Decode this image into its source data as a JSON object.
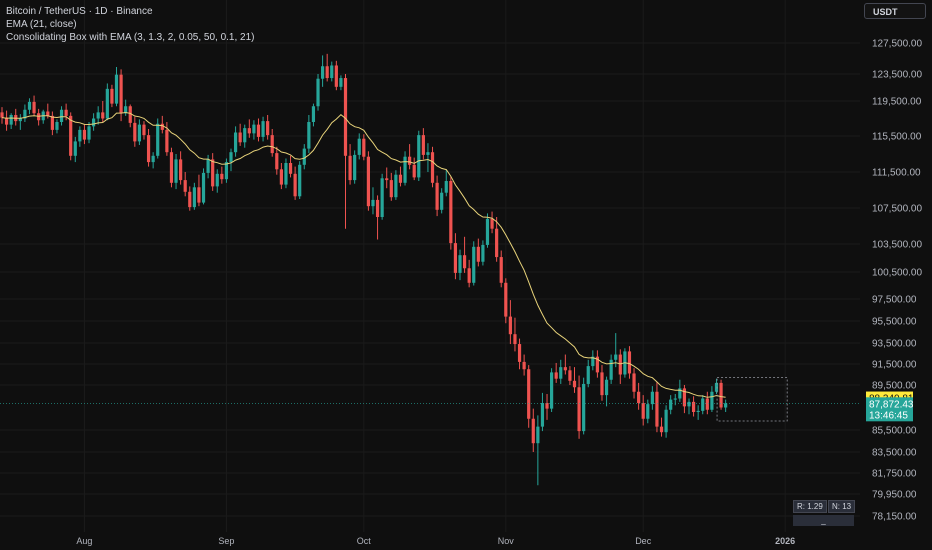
{
  "header": {
    "symbol_line": "Bitcoin / TetherUS · 1D · Binance",
    "indicator_1": "EMA (21, close)",
    "indicator_2": "Consolidating Box with EMA (3, 1.3, 2, 0.05, 50, 0.1, 21)"
  },
  "currency_button": "USDT",
  "stats": {
    "r_label": "R: 1.29",
    "n_label": "N: 13",
    "footer": "_"
  },
  "colors": {
    "background": "#0f0f0f",
    "up": "#26a69a",
    "down": "#ef5350",
    "ema": "#e8d37a",
    "last_price": "#ffeb3b",
    "grid": "#1b1b1b"
  },
  "chart_data": {
    "type": "candlestick",
    "title": "Bitcoin / TetherUS · 1D · Binance",
    "y_ticks": [
      {
        "label": "127,500.00",
        "value": 127500
      },
      {
        "label": "123,500.00",
        "value": 123500
      },
      {
        "label": "119,500.00",
        "value": 119500
      },
      {
        "label": "115,500.00",
        "value": 115500
      },
      {
        "label": "111,500.00",
        "value": 111500
      },
      {
        "label": "107,500.00",
        "value": 107500
      },
      {
        "label": "103,500.00",
        "value": 103500
      },
      {
        "label": "100,500.00",
        "value": 100500
      },
      {
        "label": "97,500.00",
        "value": 97500
      },
      {
        "label": "95,500.00",
        "value": 95500
      },
      {
        "label": "93,500.00",
        "value": 93500
      },
      {
        "label": "91,500.00",
        "value": 91500
      },
      {
        "label": "89,500.00",
        "value": 89500
      },
      {
        "label": "85,500.00",
        "value": 85500
      },
      {
        "label": "83,500.00",
        "value": 83500
      },
      {
        "label": "81,750.00",
        "value": 81750
      },
      {
        "label": "79,950.00",
        "value": 79950
      },
      {
        "label": "78,150.00",
        "value": 78150
      }
    ],
    "x_ticks": [
      {
        "label": "Aug",
        "index": 18
      },
      {
        "label": "Sep",
        "index": 49
      },
      {
        "label": "Oct",
        "index": 79
      },
      {
        "label": "Nov",
        "index": 110
      },
      {
        "label": "Dec",
        "index": 140
      },
      {
        "label": "2026",
        "index": 171
      }
    ],
    "price_labels": [
      {
        "name": "ema",
        "text": "88,340.81",
        "value": 88340.81
      },
      {
        "name": "last",
        "text": "87,872.43",
        "value": 87872.43
      },
      {
        "name": "countdown",
        "text": "13:46:45",
        "value": 87872.43
      }
    ],
    "consolidation_box": {
      "start_index": 157,
      "end_index": 171,
      "high": 90200,
      "low": 86300
    },
    "candles": [
      [
        118200,
        118800,
        116900,
        117600
      ],
      [
        117600,
        118400,
        116100,
        116800
      ],
      [
        116800,
        118100,
        116300,
        117900
      ],
      [
        117900,
        118600,
        116700,
        117200
      ],
      [
        117200,
        118000,
        116200,
        117500
      ],
      [
        117500,
        119100,
        117100,
        118500
      ],
      [
        118500,
        119900,
        118000,
        119400
      ],
      [
        119400,
        120300,
        117800,
        118100
      ],
      [
        118100,
        118600,
        116700,
        117300
      ],
      [
        117300,
        118500,
        116900,
        118300
      ],
      [
        118300,
        119200,
        117500,
        117800
      ],
      [
        117800,
        118300,
        115600,
        116200
      ],
      [
        116200,
        117400,
        115800,
        117100
      ],
      [
        117100,
        118900,
        116700,
        118500
      ],
      [
        118500,
        119200,
        117300,
        117800
      ],
      [
        117800,
        118200,
        112800,
        113300
      ],
      [
        113300,
        115400,
        112600,
        114900
      ],
      [
        114900,
        116600,
        114300,
        116200
      ],
      [
        116200,
        116800,
        114600,
        115100
      ],
      [
        115100,
        117100,
        114700,
        116600
      ],
      [
        116600,
        118100,
        116100,
        117500
      ],
      [
        117500,
        118900,
        116800,
        118200
      ],
      [
        118200,
        119500,
        117100,
        117500
      ],
      [
        117500,
        122100,
        117300,
        121300
      ],
      [
        121300,
        121900,
        118800,
        119200
      ],
      [
        119200,
        124400,
        118900,
        123400
      ],
      [
        123400,
        124100,
        117200,
        118100
      ],
      [
        118100,
        119700,
        117800,
        118900
      ],
      [
        118900,
        119100,
        116500,
        117000
      ],
      [
        117000,
        117700,
        114300,
        114900
      ],
      [
        114900,
        117400,
        114500,
        116800
      ],
      [
        116800,
        117200,
        115100,
        115600
      ],
      [
        115600,
        116300,
        112100,
        112600
      ],
      [
        112600,
        113700,
        111900,
        113300
      ],
      [
        113300,
        117500,
        113000,
        116900
      ],
      [
        116900,
        117800,
        115800,
        116200
      ],
      [
        116200,
        117100,
        113300,
        113700
      ],
      [
        113700,
        114200,
        109800,
        110300
      ],
      [
        110300,
        113500,
        109600,
        112900
      ],
      [
        112900,
        113800,
        110100,
        110600
      ],
      [
        110600,
        111500,
        108800,
        109300
      ],
      [
        109300,
        109900,
        107200,
        107600
      ],
      [
        107600,
        110300,
        107300,
        109800
      ],
      [
        109800,
        111200,
        107700,
        108100
      ],
      [
        108100,
        111900,
        107900,
        111400
      ],
      [
        111400,
        113400,
        110800,
        112900
      ],
      [
        112900,
        113600,
        109400,
        109900
      ],
      [
        109900,
        111800,
        109200,
        111300
      ],
      [
        111300,
        112100,
        110200,
        110700
      ],
      [
        110700,
        113000,
        110300,
        112600
      ],
      [
        112600,
        114100,
        111600,
        113700
      ],
      [
        113700,
        116600,
        113200,
        115900
      ],
      [
        115900,
        116900,
        114400,
        114800
      ],
      [
        114800,
        116800,
        114200,
        116400
      ],
      [
        116400,
        117400,
        115300,
        115800
      ],
      [
        115800,
        117300,
        115100,
        116800
      ],
      [
        116800,
        117500,
        114900,
        115400
      ],
      [
        115400,
        117700,
        114900,
        117200
      ],
      [
        117200,
        117900,
        115100,
        115600
      ],
      [
        115600,
        116300,
        113200,
        113600
      ],
      [
        113600,
        114300,
        111200,
        111800
      ],
      [
        111800,
        112500,
        109600,
        110100
      ],
      [
        110100,
        113000,
        109700,
        112500
      ],
      [
        112500,
        113300,
        110900,
        111300
      ],
      [
        111300,
        112100,
        108400,
        108800
      ],
      [
        108800,
        112700,
        108500,
        112300
      ],
      [
        112300,
        114600,
        111800,
        114100
      ],
      [
        114100,
        117900,
        113600,
        117100
      ],
      [
        117100,
        119200,
        116600,
        118900
      ],
      [
        118900,
        123500,
        118400,
        122800
      ],
      [
        122800,
        125900,
        121600,
        124500
      ],
      [
        124500,
        126100,
        122400,
        122900
      ],
      [
        122900,
        125100,
        122400,
        124600
      ],
      [
        124600,
        125200,
        121100,
        121600
      ],
      [
        121600,
        123300,
        121100,
        122900
      ],
      [
        122900,
        123500,
        105200,
        113300
      ],
      [
        113300,
        114600,
        110100,
        110600
      ],
      [
        110600,
        113900,
        110200,
        113400
      ],
      [
        113400,
        115800,
        112900,
        115200
      ],
      [
        115200,
        115700,
        112800,
        113200
      ],
      [
        113200,
        113800,
        107200,
        107700
      ],
      [
        107700,
        109800,
        106800,
        108400
      ],
      [
        108400,
        108900,
        104000,
        106500
      ],
      [
        106500,
        111300,
        106200,
        110800
      ],
      [
        110800,
        112000,
        109700,
        110600
      ],
      [
        110600,
        111400,
        108300,
        108700
      ],
      [
        108700,
        111700,
        108400,
        111200
      ],
      [
        111200,
        112100,
        109900,
        110300
      ],
      [
        110300,
        113800,
        110000,
        113200
      ],
      [
        113200,
        114600,
        111800,
        112300
      ],
      [
        112300,
        113100,
        110600,
        110900
      ],
      [
        110900,
        116100,
        110500,
        115600
      ],
      [
        115600,
        116400,
        112900,
        113400
      ],
      [
        113400,
        114700,
        111500,
        113700
      ],
      [
        113700,
        114300,
        109800,
        110300
      ],
      [
        110300,
        111100,
        106600,
        107300
      ],
      [
        107300,
        109700,
        106900,
        109200
      ],
      [
        109200,
        111800,
        108800,
        110500
      ],
      [
        110500,
        111000,
        102900,
        103600
      ],
      [
        103600,
        104700,
        99700,
        100400
      ],
      [
        100400,
        102900,
        99600,
        102300
      ],
      [
        102300,
        104300,
        100400,
        100900
      ],
      [
        100900,
        101800,
        98800,
        99300
      ],
      [
        99300,
        103800,
        99000,
        103200
      ],
      [
        103200,
        104100,
        101100,
        101600
      ],
      [
        101600,
        103900,
        101200,
        103400
      ],
      [
        103400,
        106900,
        103100,
        106300
      ],
      [
        106300,
        107100,
        104700,
        105200
      ],
      [
        105200,
        106500,
        101600,
        102100
      ],
      [
        102100,
        102800,
        98800,
        99300
      ],
      [
        99300,
        99800,
        95300,
        95900
      ],
      [
        95900,
        97400,
        93400,
        94300
      ],
      [
        94300,
        95800,
        92700,
        93400
      ],
      [
        93400,
        93900,
        91000,
        91700
      ],
      [
        91700,
        92400,
        90400,
        91000
      ],
      [
        91000,
        91400,
        85700,
        86500
      ],
      [
        86500,
        87400,
        83500,
        84300
      ],
      [
        84300,
        86800,
        80700,
        85800
      ],
      [
        85800,
        88800,
        85400,
        87900
      ],
      [
        87900,
        88700,
        86400,
        87400
      ],
      [
        87400,
        91100,
        87100,
        90700
      ],
      [
        90700,
        91600,
        89700,
        90100
      ],
      [
        90100,
        91900,
        89600,
        91200
      ],
      [
        91200,
        92400,
        90500,
        90900
      ],
      [
        90900,
        91300,
        89500,
        89900
      ],
      [
        89900,
        91200,
        88800,
        89300
      ],
      [
        89300,
        90400,
        84700,
        85400
      ],
      [
        85400,
        90200,
        85100,
        89600
      ],
      [
        89600,
        91900,
        89300,
        91300
      ],
      [
        91300,
        92800,
        90900,
        92200
      ],
      [
        92200,
        92800,
        90200,
        90700
      ],
      [
        90700,
        91400,
        88100,
        88600
      ],
      [
        88600,
        90300,
        87600,
        90000
      ],
      [
        90000,
        92400,
        89600,
        91900
      ],
      [
        91900,
        94400,
        91200,
        92400
      ],
      [
        92400,
        92900,
        89600,
        90500
      ],
      [
        90500,
        93000,
        90200,
        92700
      ],
      [
        92700,
        93200,
        90100,
        90600
      ],
      [
        90600,
        91100,
        88300,
        88900
      ],
      [
        88900,
        89700,
        87300,
        87900
      ],
      [
        87900,
        88600,
        85900,
        86500
      ],
      [
        86500,
        88200,
        86100,
        87800
      ],
      [
        87800,
        89400,
        87300,
        88900
      ],
      [
        88900,
        89800,
        85300,
        85800
      ],
      [
        85800,
        86600,
        84900,
        85300
      ],
      [
        85300,
        87700,
        84800,
        87300
      ],
      [
        87300,
        88600,
        86900,
        88200
      ],
      [
        88200,
        88700,
        87700,
        88300
      ],
      [
        88300,
        90000,
        88000,
        89200
      ],
      [
        89200,
        89500,
        87000,
        87600
      ],
      [
        87600,
        88300,
        86900,
        88000
      ],
      [
        88000,
        88500,
        86700,
        87100
      ],
      [
        87100,
        87700,
        86400,
        87200
      ],
      [
        87200,
        88600,
        86900,
        88300
      ],
      [
        88300,
        88900,
        86900,
        87300
      ],
      [
        87300,
        89400,
        87100,
        88900
      ],
      [
        88900,
        90100,
        88700,
        89700
      ],
      [
        89700,
        90000,
        87300,
        87500
      ],
      [
        87500,
        88200,
        87100,
        87872
      ]
    ]
  }
}
